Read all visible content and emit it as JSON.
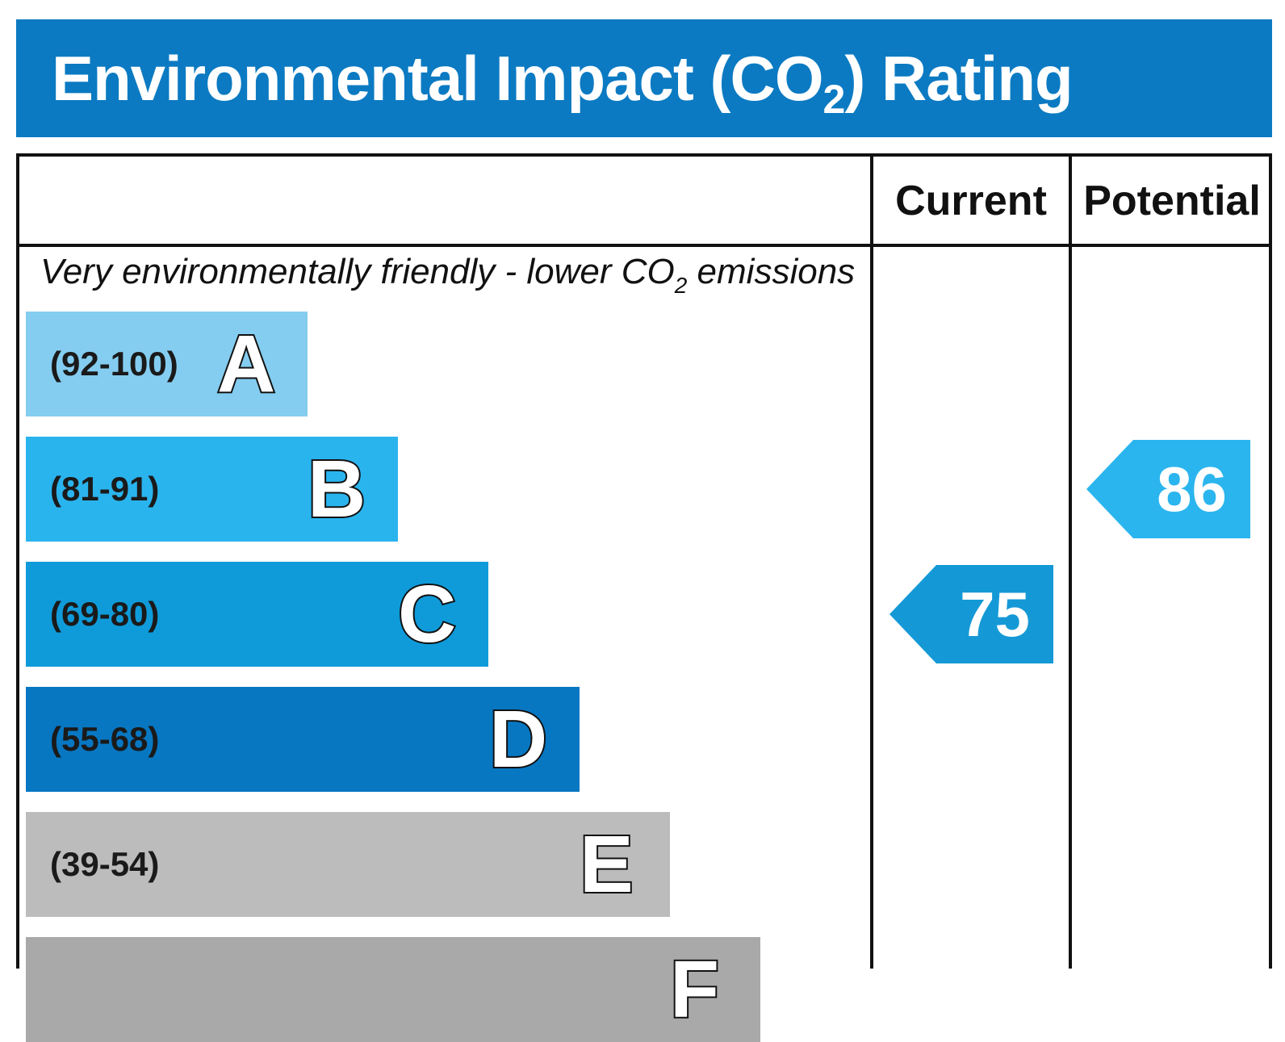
{
  "title": {
    "prefix": "Environmental Impact (CO",
    "subscript": "2",
    "suffix": ") Rating"
  },
  "headers": {
    "current": "Current",
    "potential": "Potential"
  },
  "note_top": {
    "prefix": "Very environmentally friendly - lower CO",
    "subscript": "2",
    "suffix": " emissions"
  },
  "colors": {
    "title_bg": "#0b7ac2",
    "arrow_current": "#1599d6",
    "arrow_potential": "#2bb5ee"
  },
  "chart_data": {
    "type": "bar",
    "title": "Environmental Impact (CO2) Rating",
    "categories": [
      "A",
      "B",
      "C",
      "D",
      "E",
      "F"
    ],
    "ranges": [
      "(92-100)",
      "(81-91)",
      "(69-80)",
      "(55-68)",
      "(39-54)",
      ""
    ],
    "band_colors": [
      "#84cdf0",
      "#2ab4ee",
      "#0f9bd9",
      "#0777c2",
      "#bcbcbc",
      "#a9a9a9"
    ],
    "ratings": {
      "current": 75,
      "potential": 86
    }
  }
}
